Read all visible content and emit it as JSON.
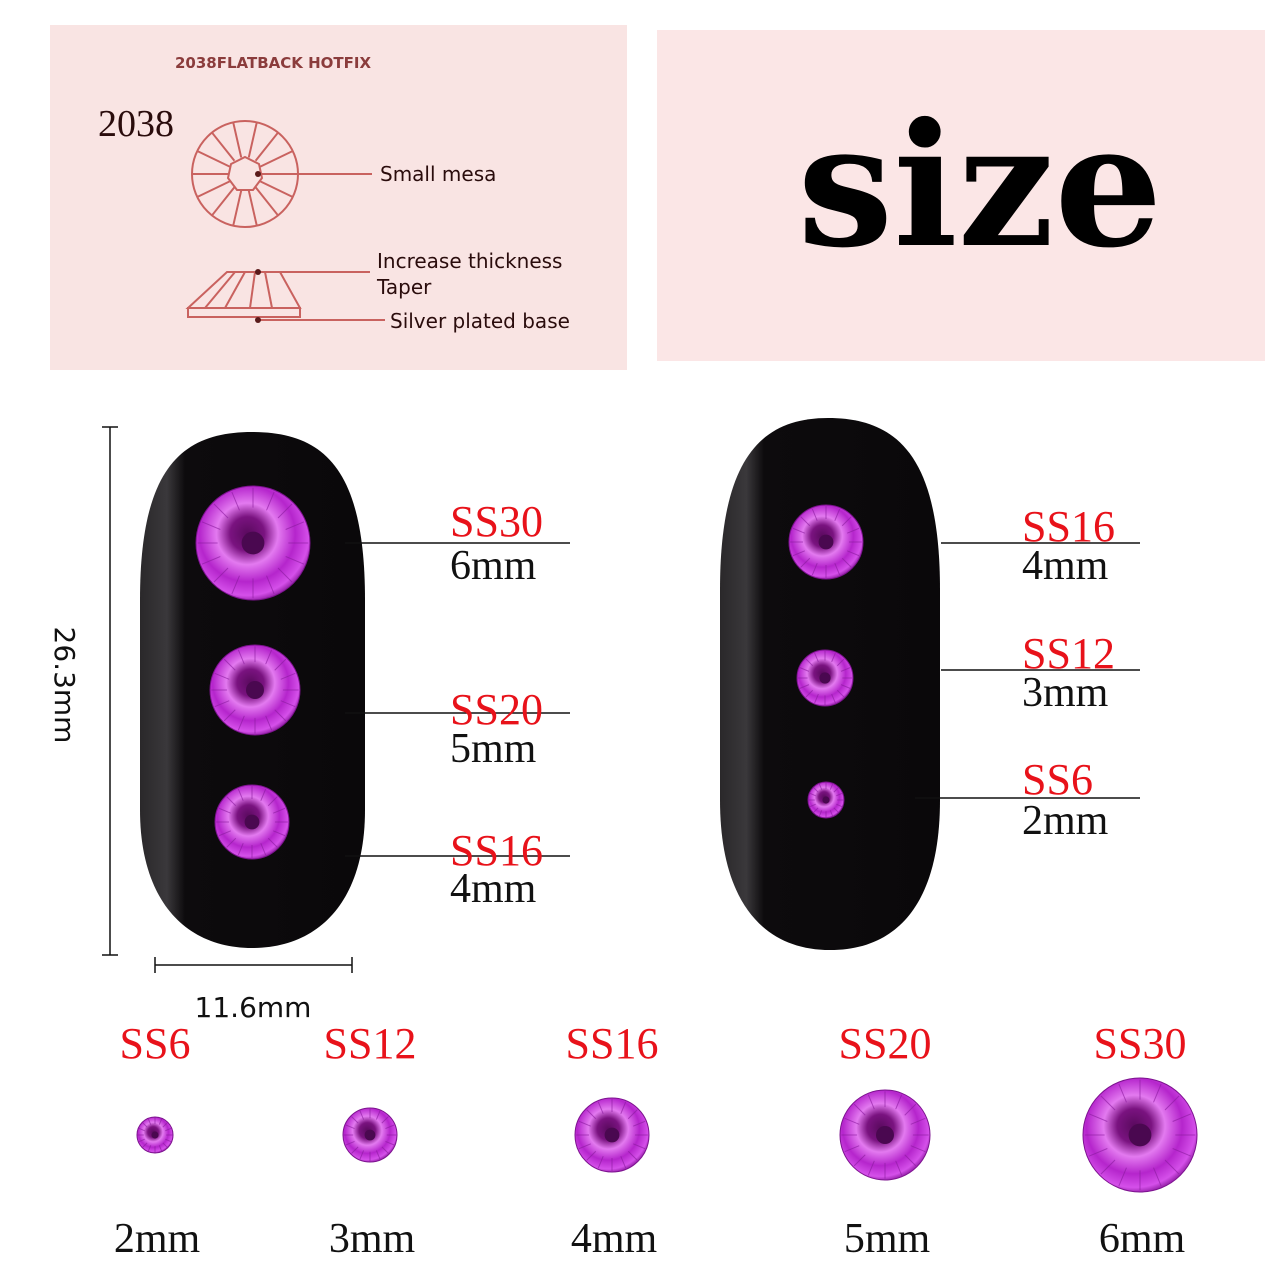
{
  "diagram_panel": {
    "heading": "2038FLATBACK HOTFIX",
    "model": "2038",
    "callouts": [
      "Small mesa",
      "Increase thickness",
      "Taper",
      "Silver plated base"
    ]
  },
  "size_panel": {
    "title": "size"
  },
  "dimensions": {
    "height": "26.3mm",
    "width": "11.6mm"
  },
  "nail_left": [
    {
      "code": "SS30",
      "mm": "6mm"
    },
    {
      "code": "SS20",
      "mm": "5mm"
    },
    {
      "code": "SS16",
      "mm": "4mm"
    }
  ],
  "nail_right": [
    {
      "code": "SS16",
      "mm": "4mm"
    },
    {
      "code": "SS12",
      "mm": "3mm"
    },
    {
      "code": "SS6",
      "mm": "2mm"
    }
  ],
  "size_row": [
    {
      "code": "SS6",
      "mm": "2mm"
    },
    {
      "code": "SS12",
      "mm": "3mm"
    },
    {
      "code": "SS16",
      "mm": "4mm"
    },
    {
      "code": "SS20",
      "mm": "5mm"
    },
    {
      "code": "SS30",
      "mm": "6mm"
    }
  ],
  "colors": {
    "panel_bg": "#f9e4e3",
    "diagram_line": "#c9625f",
    "label_red": "#e8121a",
    "gem": "#c02ad6",
    "nail": "#0d0b0d"
  }
}
